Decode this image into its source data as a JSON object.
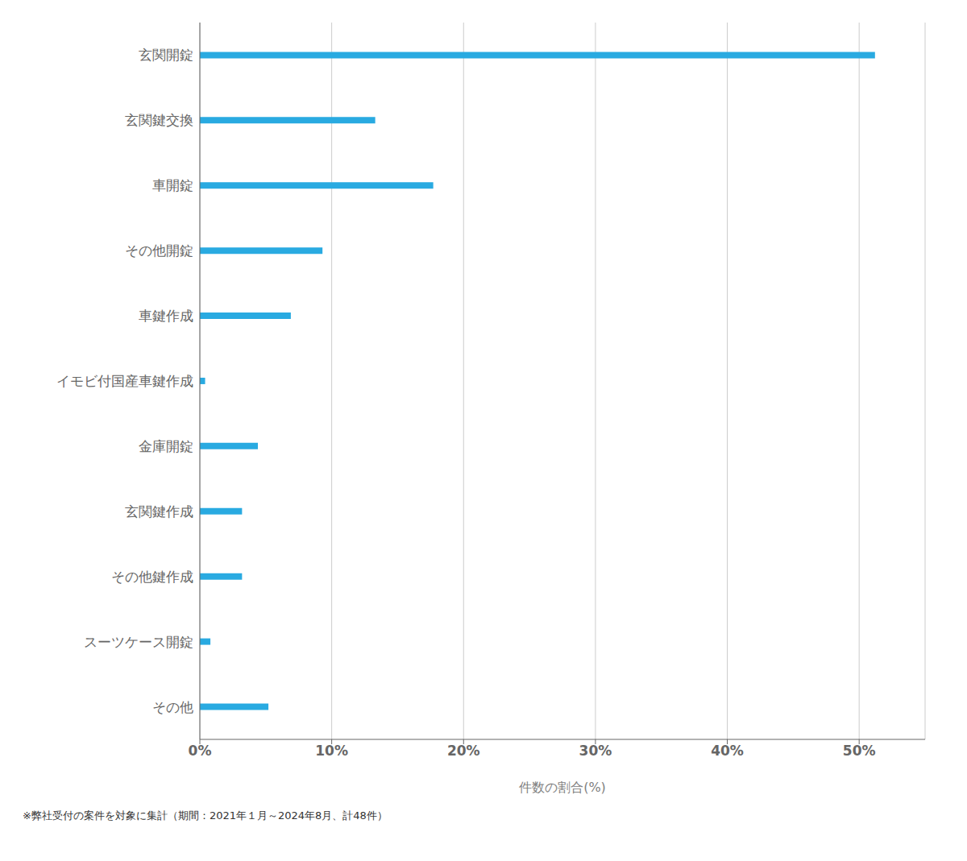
{
  "chart_data": {
    "type": "bar",
    "orientation": "horizontal",
    "categories": [
      "玄関開錠",
      "玄関鍵交換",
      "車開錠",
      "その他開錠",
      "車鍵作成",
      "イモビ付国産車鍵作成",
      "金庫開錠",
      "玄関鍵作成",
      "その他鍵作成",
      "スーツケース開錠",
      "その他"
    ],
    "values": [
      51.2,
      13.3,
      17.7,
      9.3,
      6.9,
      0.4,
      4.4,
      3.2,
      3.2,
      0.8,
      5.2
    ],
    "color": "#29aae1",
    "xlabel": "件数の割合(%)",
    "xlim": [
      0,
      55
    ],
    "xticks": [
      {
        "value": 0,
        "label": "0%"
      },
      {
        "value": 10,
        "label": "10%"
      },
      {
        "value": 20,
        "label": "20%"
      },
      {
        "value": 30,
        "label": "30%"
      },
      {
        "value": 40,
        "label": "40%"
      },
      {
        "value": 50,
        "label": "50%"
      }
    ],
    "grid": true,
    "footnote": "※弊社受付の案件を対象に集計（期間：2021年１月～2024年8月、計48件）"
  }
}
